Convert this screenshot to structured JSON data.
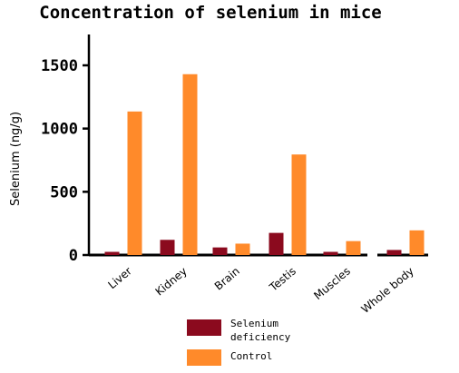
{
  "chart_data": {
    "type": "bar",
    "title": "Concentration of selenium in mice",
    "xlabel": "",
    "ylabel": "Selenium (ng/g)",
    "ylim": [
      0,
      1750
    ],
    "yticks": [
      0,
      500,
      1000,
      1500
    ],
    "categories": [
      "Liver",
      "Kidney",
      "Brain",
      "Testis",
      "Muscles",
      "Whole body"
    ],
    "series": [
      {
        "name": "Selenium deficiency",
        "color": "#8b0a1e",
        "values": [
          25,
          120,
          60,
          175,
          25,
          40
        ]
      },
      {
        "name": "Control",
        "color": "#ff8a2a",
        "values": [
          1135,
          1430,
          90,
          795,
          110,
          195
        ]
      }
    ],
    "legend_position": "bottom",
    "grid": false
  }
}
